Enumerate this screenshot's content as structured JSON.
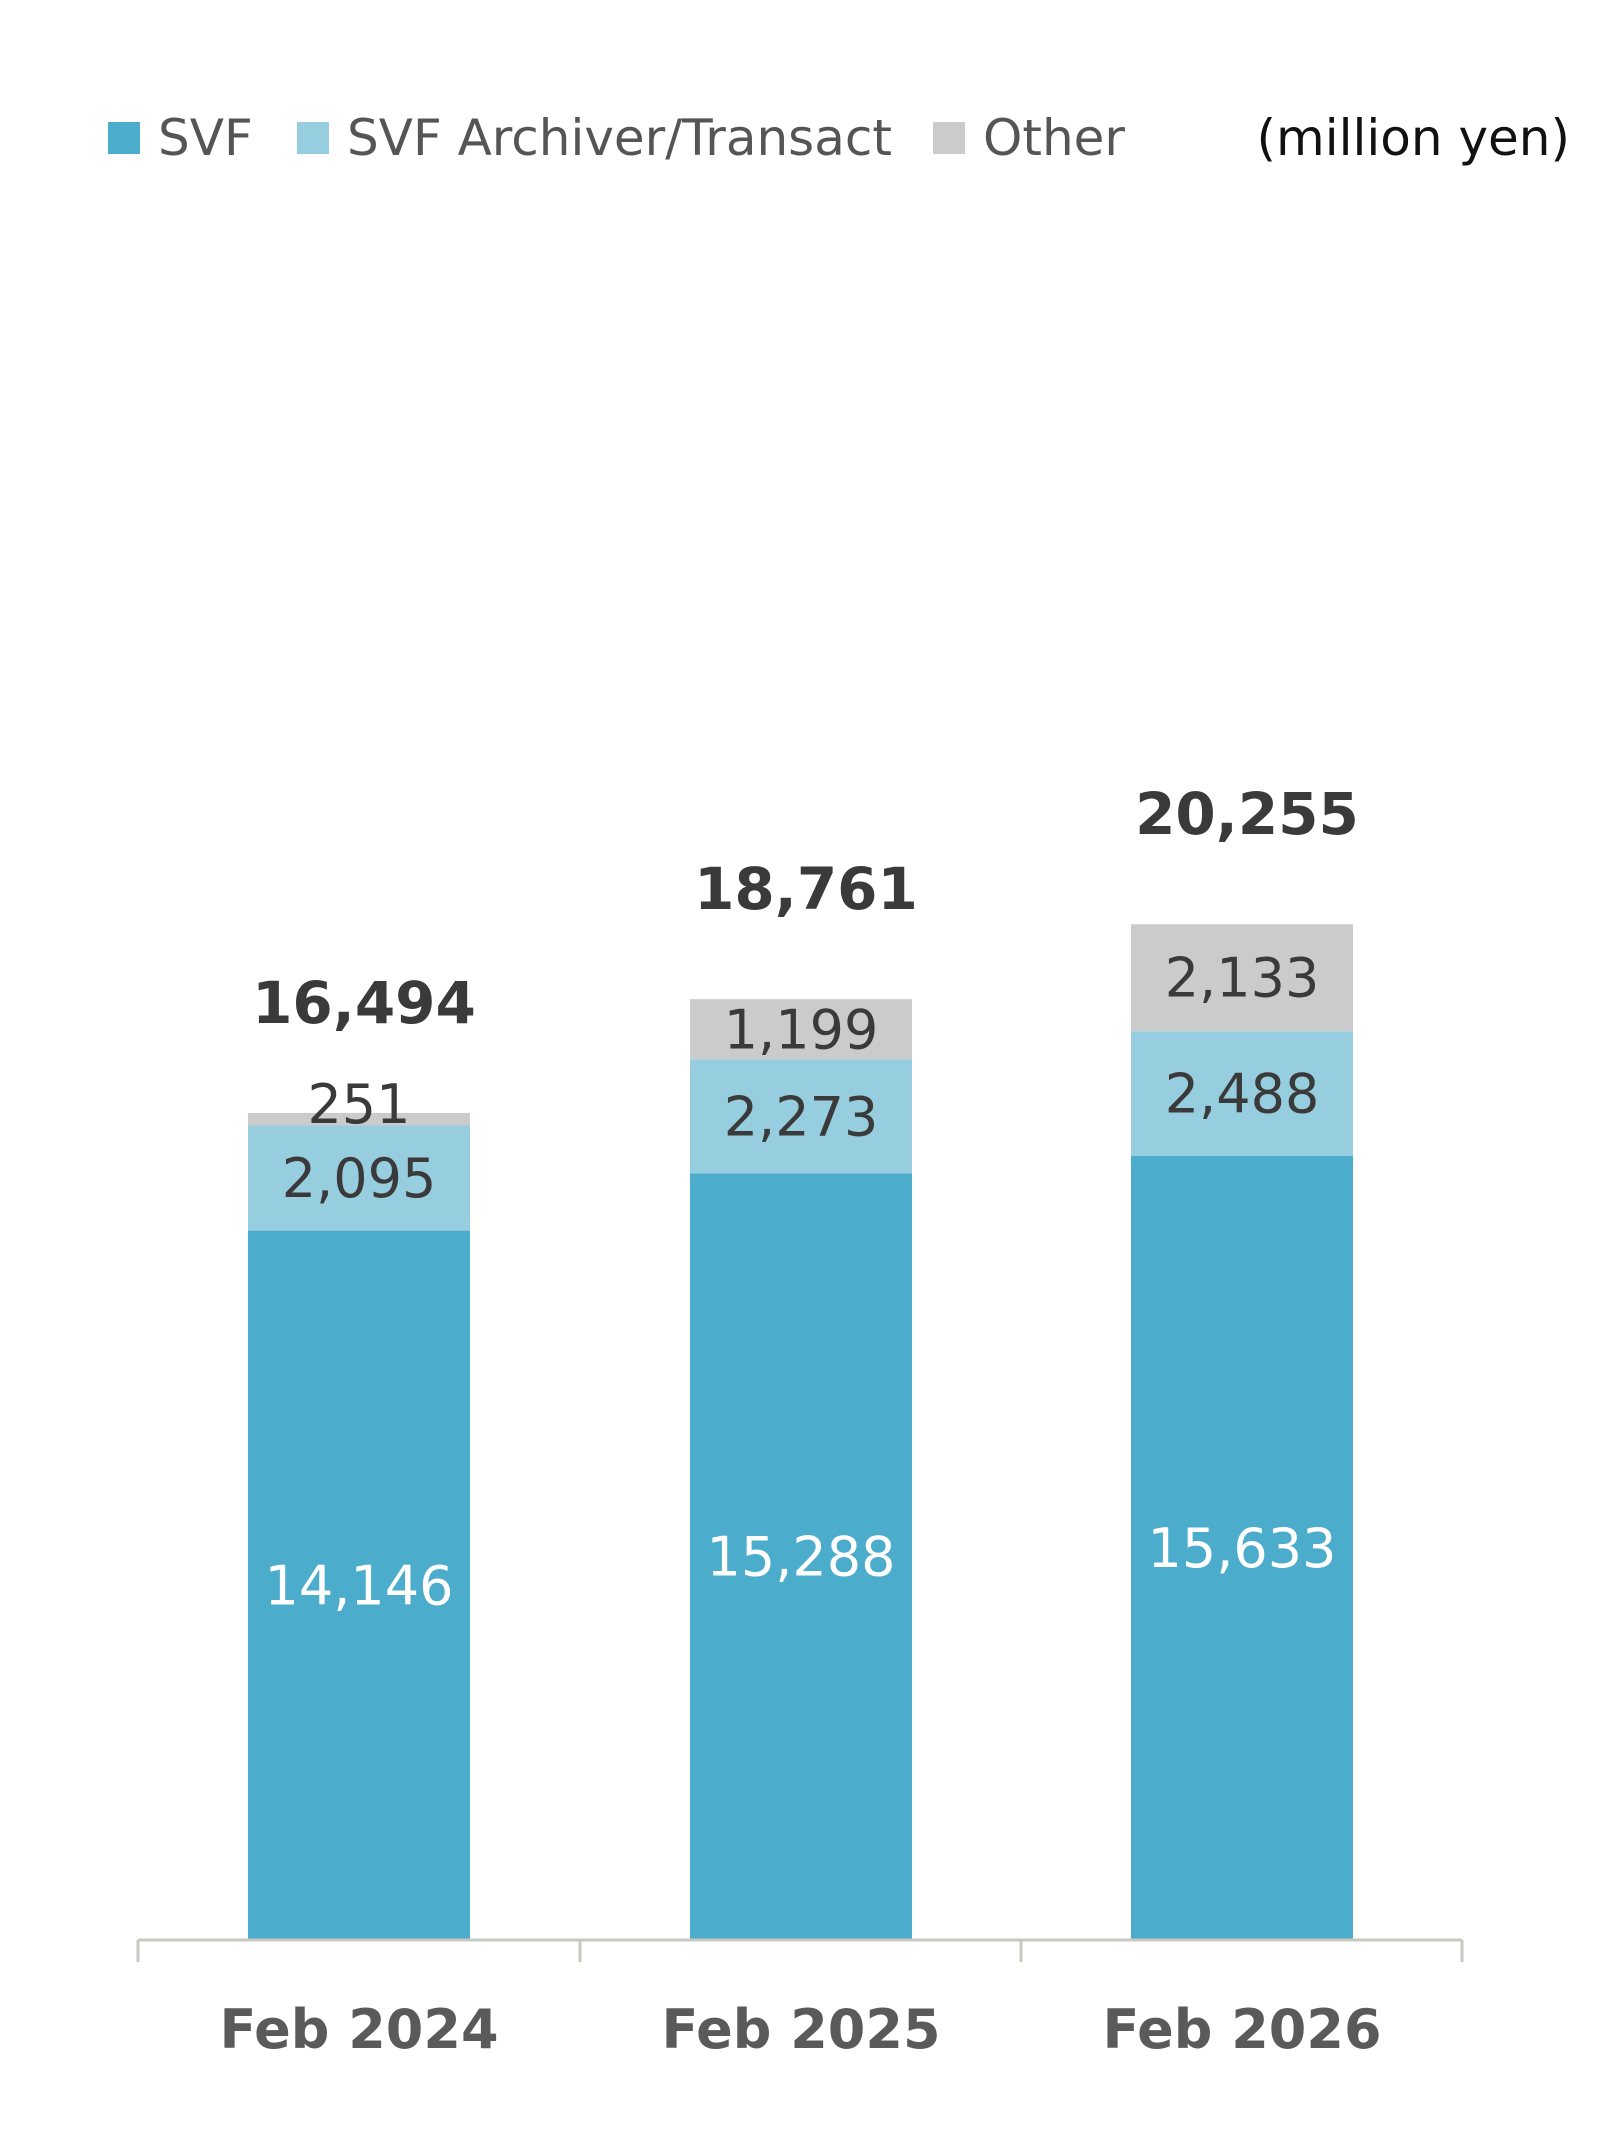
{
  "unit_label": "(million yen)",
  "colors": {
    "svf": "#4BACCC",
    "archiver": "#96CEE0",
    "other": "#CBCBCB",
    "axis": "#C8C8C0",
    "label_dark": "#3A3A3A",
    "label_light": "#FFFFFF"
  },
  "chart_data": {
    "type": "bar",
    "stacked": true,
    "categories": [
      "Feb 2024",
      "Feb 2025",
      "Feb 2026"
    ],
    "series": [
      {
        "name": "SVF",
        "key": "svf",
        "values": [
          14146,
          15288,
          15633
        ],
        "labels": [
          "14,146",
          "15,288",
          "15,633"
        ]
      },
      {
        "name": "SVF Archiver/Transact",
        "key": "archiver",
        "values": [
          2095,
          2273,
          2488
        ],
        "labels": [
          "2,095",
          "2,273",
          "2,488"
        ]
      },
      {
        "name": "Other",
        "key": "other",
        "values": [
          251,
          1199,
          2133
        ],
        "labels": [
          "251",
          "1,199",
          "2,133"
        ]
      }
    ],
    "totals": [
      16494,
      18761,
      20255
    ],
    "total_labels": [
      "16,494",
      "18,761",
      "20,255"
    ],
    "ylim": [
      0,
      25000
    ],
    "grid": false,
    "legend_position": "top-left",
    "title": "",
    "xlabel": "",
    "ylabel": ""
  }
}
